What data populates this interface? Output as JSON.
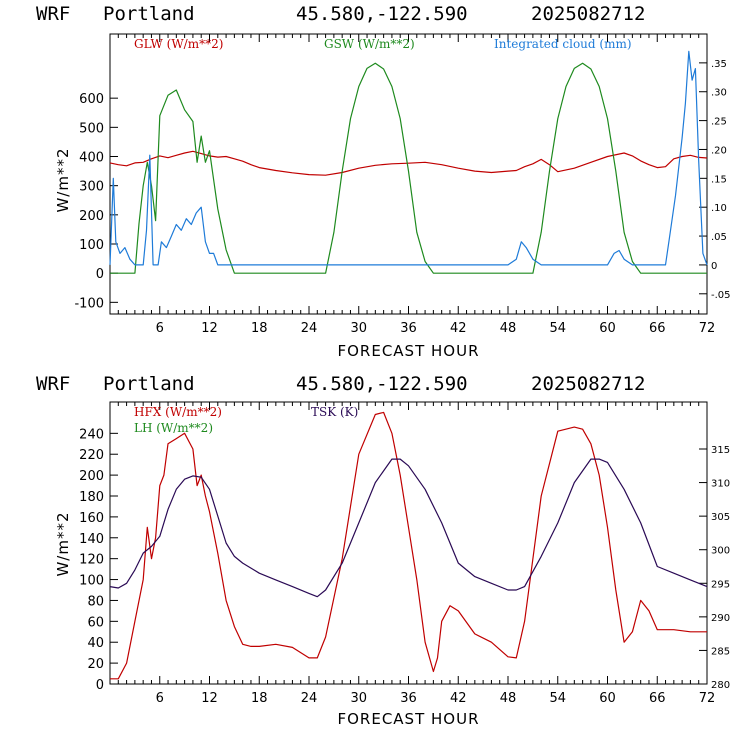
{
  "header": {
    "model": "WRF",
    "location": "Portland",
    "coords": "45.580,-122.590",
    "run": "2025082712"
  },
  "colors": {
    "red": "#c00000",
    "green": "#1e8a1e",
    "blue": "#1e7bd8",
    "purple": "#2a0a55"
  },
  "chart_data": [
    {
      "type": "line",
      "xlabel": "FORECAST HOUR",
      "ylabel": "W/m**2",
      "xlim": [
        0,
        72
      ],
      "ylim": [
        -140,
        820
      ],
      "xticks": [
        6,
        12,
        18,
        24,
        30,
        36,
        42,
        48,
        54,
        60,
        66,
        72
      ],
      "yticks": [
        -100,
        0,
        100,
        200,
        300,
        400,
        500,
        600
      ],
      "y2lim": [
        -0.085,
        0.4
      ],
      "y2ticks": [
        -0.05,
        0,
        0.05,
        0.1,
        0.15,
        0.2,
        0.25,
        0.3,
        0.35
      ],
      "y2ticklabels": [
        "-.05",
        "0",
        ".05",
        ".10",
        ".15",
        ".20",
        ".25",
        ".30",
        ".35"
      ],
      "series": [
        {
          "name": "GLW (W/m**2)",
          "color": "#c00000",
          "axis": "left",
          "x": [
            0,
            1,
            2,
            3,
            4,
            5,
            6,
            7,
            8,
            9,
            10,
            11,
            12,
            13,
            14,
            15,
            16,
            17,
            18,
            20,
            22,
            24,
            26,
            28,
            30,
            32,
            34,
            36,
            38,
            40,
            42,
            44,
            46,
            48,
            49,
            50,
            51,
            52,
            53,
            54,
            56,
            58,
            60,
            62,
            63,
            64,
            65,
            66,
            67,
            68,
            69,
            70,
            71,
            72
          ],
          "y": [
            378,
            372,
            368,
            378,
            380,
            392,
            402,
            396,
            404,
            412,
            418,
            410,
            402,
            398,
            400,
            392,
            384,
            372,
            362,
            352,
            344,
            338,
            336,
            345,
            360,
            370,
            375,
            377,
            380,
            372,
            360,
            350,
            345,
            350,
            352,
            365,
            375,
            390,
            372,
            348,
            360,
            380,
            400,
            412,
            402,
            385,
            372,
            362,
            365,
            392,
            400,
            404,
            397,
            395
          ]
        },
        {
          "name": "GSW (W/m**2)",
          "color": "#1e8a1e",
          "axis": "left",
          "x": [
            0,
            3,
            3.5,
            4,
            4.5,
            5,
            5.5,
            6,
            7,
            8,
            9,
            10,
            10.5,
            11,
            11.5,
            12,
            13,
            14,
            15,
            16,
            20,
            26,
            27,
            28,
            29,
            30,
            31,
            32,
            33,
            34,
            35,
            36,
            37,
            38,
            39,
            40,
            50,
            51,
            52,
            53,
            54,
            55,
            56,
            57,
            58,
            59,
            60,
            61,
            62,
            63,
            64,
            72
          ],
          "y": [
            0,
            0,
            170,
            300,
            380,
            300,
            180,
            540,
            610,
            628,
            560,
            520,
            380,
            470,
            380,
            420,
            220,
            80,
            0,
            0,
            0,
            0,
            140,
            350,
            530,
            640,
            702,
            720,
            700,
            640,
            530,
            350,
            140,
            40,
            0,
            0,
            0,
            0,
            140,
            350,
            530,
            640,
            702,
            720,
            700,
            640,
            530,
            350,
            140,
            40,
            0,
            0
          ]
        },
        {
          "name": "Integrated cloud (mm)",
          "color": "#1e7bd8",
          "axis": "right",
          "x": [
            0,
            0.4,
            0.7,
            1.2,
            1.8,
            2.4,
            3,
            4,
            4.4,
            4.8,
            5.2,
            5.8,
            6.2,
            6.8,
            7.4,
            8,
            8.6,
            9.2,
            9.8,
            10.4,
            11,
            11.5,
            12,
            12.5,
            13,
            13.5,
            48,
            49,
            49.6,
            50.2,
            51,
            52,
            60,
            60.8,
            61.4,
            62,
            63,
            67,
            67.5,
            68.2,
            69,
            69.4,
            69.8,
            70.2,
            70.6,
            71,
            71.5,
            72
          ],
          "y": [
            0,
            0.15,
            0.04,
            0.02,
            0.03,
            0.01,
            0,
            0,
            0.06,
            0.19,
            0,
            0,
            0.04,
            0.03,
            0.05,
            0.07,
            0.06,
            0.08,
            0.07,
            0.09,
            0.1,
            0.04,
            0.02,
            0.02,
            0,
            0,
            0,
            0.01,
            0.04,
            0.03,
            0.01,
            0,
            0,
            0.02,
            0.025,
            0.01,
            0,
            0,
            0.05,
            0.12,
            0.22,
            0.28,
            0.37,
            0.32,
            0.34,
            0.18,
            0.02,
            0
          ]
        }
      ]
    },
    {
      "type": "line",
      "xlabel": "FORECAST HOUR",
      "ylabel": "W/m**2",
      "xlim": [
        0,
        72
      ],
      "ylim": [
        0,
        270
      ],
      "xticks": [
        6,
        12,
        18,
        24,
        30,
        36,
        42,
        48,
        54,
        60,
        66,
        72
      ],
      "yticks": [
        0,
        20,
        40,
        60,
        80,
        100,
        120,
        140,
        160,
        180,
        200,
        220,
        240
      ],
      "y2lim": [
        280,
        322
      ],
      "y2ticks": [
        280,
        285,
        290,
        295,
        300,
        305,
        310,
        315
      ],
      "series": [
        {
          "name": "HFX (W/m**2)",
          "color": "#c00000",
          "axis": "left",
          "x": [
            0,
            1,
            2,
            3,
            4,
            4.5,
            5,
            5.5,
            6,
            6.5,
            7,
            8,
            9,
            10,
            10.5,
            11,
            11.5,
            12,
            13,
            14,
            15,
            16,
            17,
            18,
            20,
            22,
            24,
            25,
            26,
            28,
            30,
            32,
            33,
            34,
            35,
            36,
            37,
            38,
            39,
            39.5,
            40,
            41,
            42,
            44,
            46,
            48,
            49,
            50,
            52,
            54,
            56,
            57,
            58,
            59,
            60,
            61,
            62,
            63,
            64,
            65,
            66,
            68,
            70,
            71,
            72
          ],
          "y": [
            5,
            5,
            20,
            60,
            100,
            150,
            120,
            140,
            190,
            200,
            230,
            235,
            240,
            225,
            190,
            200,
            180,
            165,
            125,
            80,
            55,
            38,
            36,
            36,
            38,
            35,
            25,
            25,
            45,
            120,
            220,
            258,
            260,
            240,
            200,
            150,
            100,
            40,
            12,
            25,
            60,
            75,
            70,
            48,
            40,
            26,
            25,
            60,
            180,
            242,
            246,
            244,
            230,
            200,
            150,
            90,
            40,
            50,
            80,
            70,
            52,
            52,
            50,
            50,
            50
          ]
        },
        {
          "name": "LH (W/m**2)",
          "color": "#1e8a1e",
          "axis": "left",
          "x": [],
          "y": []
        },
        {
          "name": "TSK (K)",
          "color": "#2a0a55",
          "axis": "right",
          "x": [
            0,
            1,
            2,
            3,
            4,
            5,
            6,
            7,
            8,
            9,
            10,
            11,
            12,
            13,
            14,
            15,
            16,
            18,
            20,
            22,
            24,
            25,
            26,
            28,
            30,
            32,
            34,
            35,
            36,
            38,
            40,
            42,
            44,
            46,
            48,
            49,
            50,
            52,
            54,
            56,
            58,
            59,
            60,
            62,
            64,
            66,
            68,
            70,
            72
          ],
          "y": [
            294.5,
            294.3,
            295.0,
            297.0,
            299.5,
            300.5,
            302,
            306,
            309,
            310.5,
            311,
            310.8,
            309,
            305,
            301,
            299,
            298,
            296.5,
            295.5,
            294.5,
            293.5,
            293.0,
            294,
            298,
            304,
            310,
            313.5,
            313.5,
            312.5,
            309,
            304,
            298,
            296,
            295,
            294,
            294,
            294.5,
            299,
            304,
            310,
            313.5,
            313.5,
            313,
            309,
            304,
            297.5,
            296.5,
            295.5,
            294.5
          ]
        }
      ]
    }
  ]
}
